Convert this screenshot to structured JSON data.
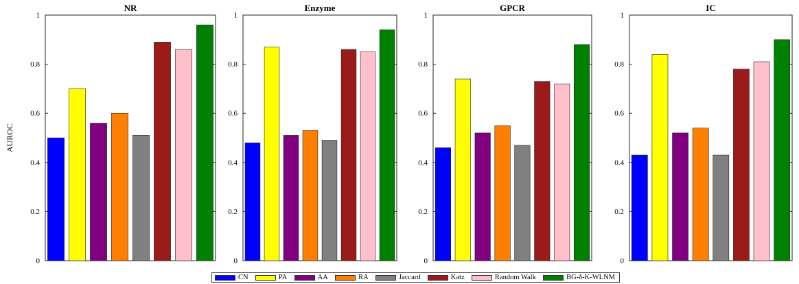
{
  "chart_data": [
    {
      "type": "bar",
      "title": "NR",
      "ylabel": "AUROC",
      "ylim": [
        0,
        1
      ],
      "yticks": [
        "0",
        "0.2",
        "0.4",
        "0.6",
        "0.8",
        "1"
      ],
      "categories": [
        "CN",
        "PA",
        "AA",
        "RA",
        "Jaccard",
        "Katz",
        "Random Walk",
        "BG-δ-K-WLNM"
      ],
      "values": [
        0.5,
        0.7,
        0.56,
        0.6,
        0.51,
        0.89,
        0.86,
        0.96
      ]
    },
    {
      "type": "bar",
      "title": "Enzyme",
      "ylabel": "",
      "ylim": [
        0,
        1
      ],
      "yticks": [
        "0",
        "0.2",
        "0.4",
        "0.6",
        "0.8",
        "1"
      ],
      "categories": [
        "CN",
        "PA",
        "AA",
        "RA",
        "Jaccard",
        "Katz",
        "Random Walk",
        "BG-δ-K-WLNM"
      ],
      "values": [
        0.48,
        0.87,
        0.51,
        0.53,
        0.49,
        0.86,
        0.85,
        0.94
      ]
    },
    {
      "type": "bar",
      "title": "GPCR",
      "ylabel": "",
      "ylim": [
        0,
        1
      ],
      "yticks": [
        "0",
        "0.2",
        "0.4",
        "0.6",
        "0.8",
        "1"
      ],
      "categories": [
        "CN",
        "PA",
        "AA",
        "RA",
        "Jaccard",
        "Katz",
        "Random Walk",
        "BG-δ-K-WLNM"
      ],
      "values": [
        0.46,
        0.74,
        0.52,
        0.55,
        0.47,
        0.73,
        0.72,
        0.88
      ]
    },
    {
      "type": "bar",
      "title": "IC",
      "ylabel": "",
      "ylim": [
        0,
        1
      ],
      "yticks": [
        "0",
        "0.2",
        "0.4",
        "0.6",
        "0.8",
        "1"
      ],
      "categories": [
        "CN",
        "PA",
        "AA",
        "RA",
        "Jaccard",
        "Katz",
        "Random Walk",
        "BG-δ-K-WLNM"
      ],
      "values": [
        0.43,
        0.84,
        0.52,
        0.54,
        0.43,
        0.78,
        0.81,
        0.9
      ]
    }
  ],
  "legend": {
    "placement": "bottom-center",
    "items": [
      {
        "label": "CN",
        "color": "#0000ff"
      },
      {
        "label": "PA",
        "color": "#ffff00"
      },
      {
        "label": "AA",
        "color": "#800080"
      },
      {
        "label": "RA",
        "color": "#ff7f00"
      },
      {
        "label": "Jaccard",
        "color": "#808080"
      },
      {
        "label": "Katz",
        "color": "#9b1b1b"
      },
      {
        "label": "Random Walk",
        "color": "#ffc0cb"
      },
      {
        "label": "BG-δ-K-WLNM",
        "color": "#008000"
      }
    ]
  },
  "grid": false
}
